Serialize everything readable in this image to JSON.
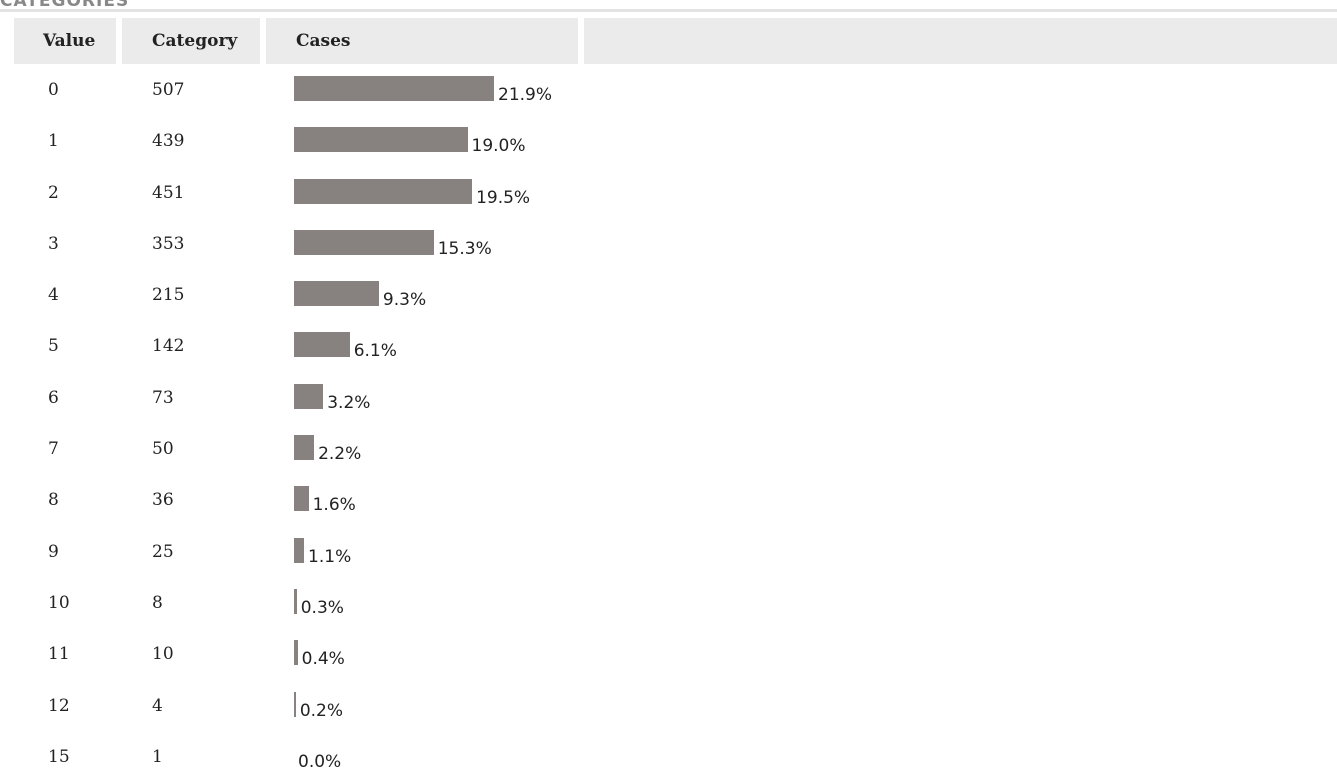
{
  "title": "CATEGORIES",
  "table": {
    "headers": [
      "Value",
      "Category",
      "Cases"
    ],
    "rows": [
      {
        "value": 0,
        "category": 507,
        "cases": {
          "value": 21.9,
          "label": "21.9%"
        }
      },
      {
        "value": 1,
        "category": 439,
        "cases": {
          "value": 19.0,
          "label": "19.0%"
        }
      },
      {
        "value": 2,
        "category": 451,
        "cases": {
          "value": 19.5,
          "label": "19.5%"
        }
      },
      {
        "value": 3,
        "category": 353,
        "cases": {
          "value": 15.3,
          "label": "15.3%"
        }
      },
      {
        "value": 4,
        "category": 215,
        "cases": {
          "value": 9.3,
          "label": "9.3%"
        }
      },
      {
        "value": 5,
        "category": 142,
        "cases": {
          "value": 6.1,
          "label": "6.1%"
        }
      },
      {
        "value": 6,
        "category": 73,
        "cases": {
          "value": 3.2,
          "label": "3.2%"
        }
      },
      {
        "value": 7,
        "category": 50,
        "cases": {
          "value": 2.2,
          "label": "2.2%"
        }
      },
      {
        "value": 8,
        "category": 36,
        "cases": {
          "value": 1.6,
          "label": "1.6%"
        }
      },
      {
        "value": 9,
        "category": 25,
        "cases": {
          "value": 1.1,
          "label": "1.1%"
        }
      },
      {
        "value": 10,
        "category": 8,
        "cases": {
          "value": 0.3,
          "label": "0.3%"
        }
      },
      {
        "value": 11,
        "category": 10,
        "cases": {
          "value": 0.4,
          "label": "0.4%"
        }
      },
      {
        "value": 12,
        "category": 4,
        "cases": {
          "value": 0.2,
          "label": "0.2%"
        }
      },
      {
        "value": 15,
        "category": 1,
        "cases": {
          "value": 0.0,
          "label": "0.0%"
        }
      }
    ]
  }
}
